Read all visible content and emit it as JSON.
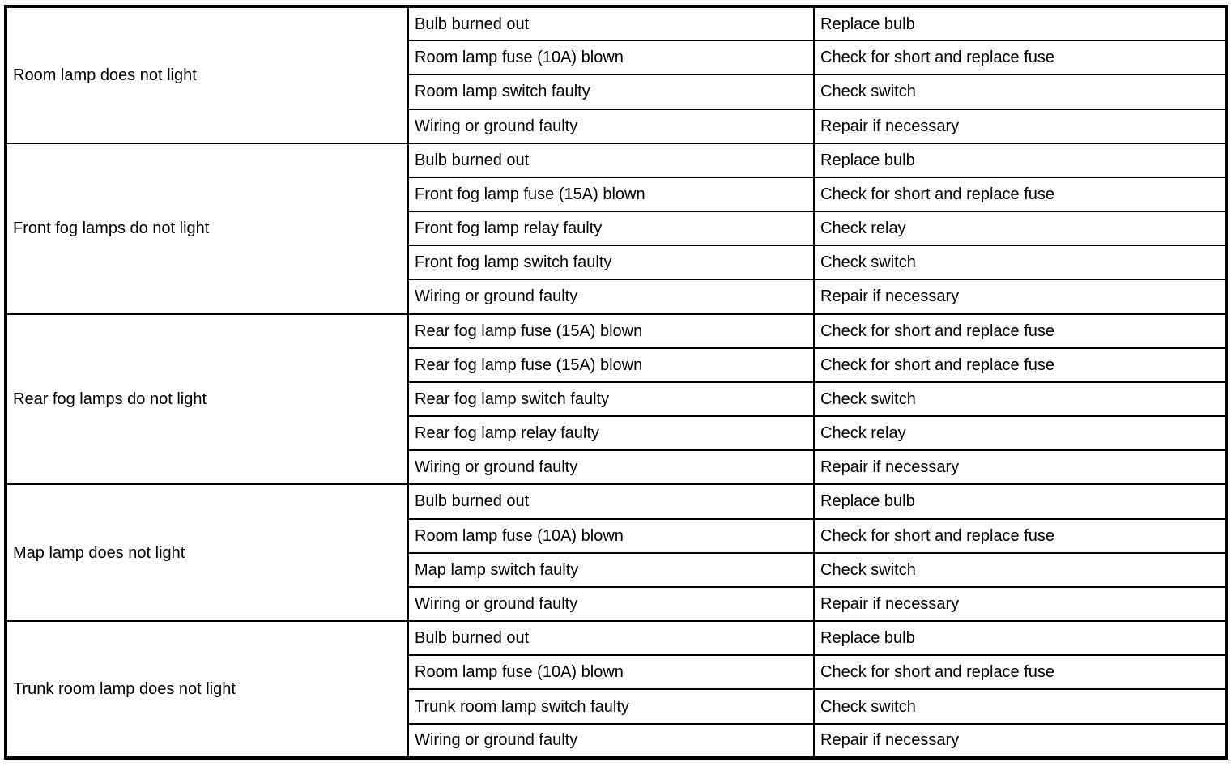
{
  "page": {
    "background_color": "#ffffff",
    "border_color": "#000000",
    "text_color": "#000000"
  },
  "table": {
    "columns": [
      "symptom",
      "possible_cause",
      "remedy"
    ],
    "sections": [
      {
        "symptom": "Room lamp does not light",
        "rows": [
          {
            "cause": "Bulb burned out",
            "remedy": "Replace bulb"
          },
          {
            "cause": "Room lamp fuse (10A) blown",
            "remedy": "Check for short and replace fuse"
          },
          {
            "cause": "Room lamp switch faulty",
            "remedy": "Check switch"
          },
          {
            "cause": "Wiring or ground faulty",
            "remedy": "Repair if necessary"
          }
        ]
      },
      {
        "symptom": "Front fog lamps do not light",
        "rows": [
          {
            "cause": "Bulb burned out",
            "remedy": "Replace bulb"
          },
          {
            "cause": "Front fog lamp fuse (15A) blown",
            "remedy": "Check for short and replace fuse"
          },
          {
            "cause": "Front fog lamp relay faulty",
            "remedy": "Check relay"
          },
          {
            "cause": "Front fog lamp switch faulty",
            "remedy": "Check switch"
          },
          {
            "cause": "Wiring or ground faulty",
            "remedy": "Repair if necessary"
          }
        ]
      },
      {
        "symptom": "Rear fog lamps do not light",
        "rows": [
          {
            "cause": "Rear fog lamp fuse (15A) blown",
            "remedy": "Check for short and replace fuse"
          },
          {
            "cause": "Rear fog lamp fuse (15A) blown",
            "remedy": "Check for short and replace fuse"
          },
          {
            "cause": "Rear fog lamp switch faulty",
            "remedy": "Check switch"
          },
          {
            "cause": "Rear fog lamp relay faulty",
            "remedy": "Check relay"
          },
          {
            "cause": "Wiring or ground faulty",
            "remedy": "Repair if necessary"
          }
        ]
      },
      {
        "symptom": "Map lamp does not light",
        "rows": [
          {
            "cause": "Bulb burned out",
            "remedy": "Replace bulb"
          },
          {
            "cause": "Room lamp fuse (10A) blown",
            "remedy": "Check for short and replace fuse"
          },
          {
            "cause": "Map lamp switch faulty",
            "remedy": "Check switch"
          },
          {
            "cause": "Wiring or ground faulty",
            "remedy": "Repair if necessary"
          }
        ]
      },
      {
        "symptom": "Trunk room lamp does not light",
        "rows": [
          {
            "cause": "Bulb burned out",
            "remedy": "Replace bulb"
          },
          {
            "cause": "Room lamp fuse (10A) blown",
            "remedy": "Check for short and replace fuse"
          },
          {
            "cause": "Trunk room lamp switch faulty",
            "remedy": "Check switch"
          },
          {
            "cause": "Wiring or ground faulty",
            "remedy": "Repair if necessary"
          }
        ]
      }
    ]
  }
}
